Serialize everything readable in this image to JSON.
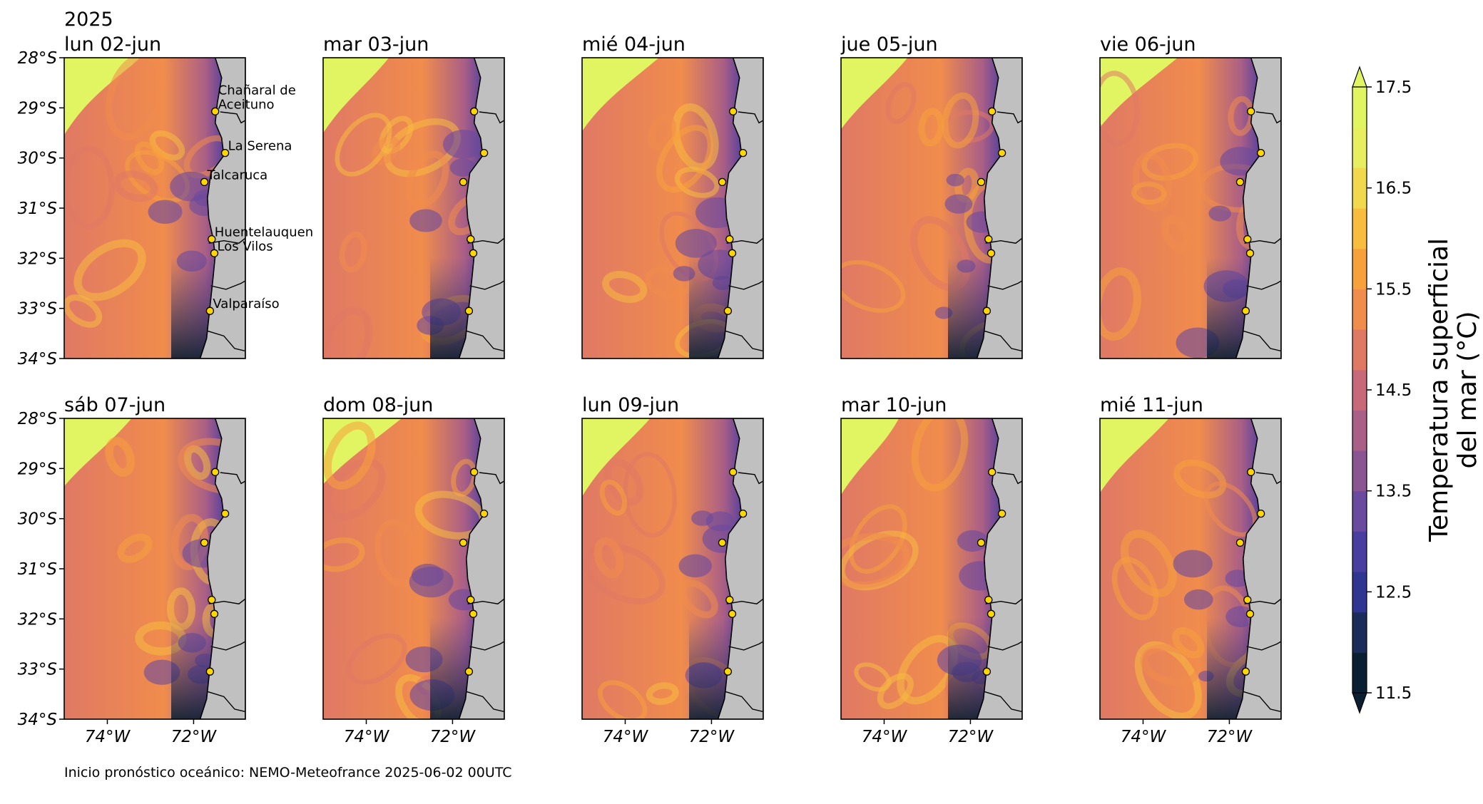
{
  "figure": {
    "year": "2025",
    "footer": "Inicio pronóstico oceánico: NEMO-Meteofrance 2025-06-02 00UTC"
  },
  "panels": [
    {
      "title": "lun 02-jun"
    },
    {
      "title": "mar 03-jun"
    },
    {
      "title": "mié 04-jun"
    },
    {
      "title": "jue 05-jun"
    },
    {
      "title": "vie 06-jun"
    },
    {
      "title": "sáb 07-jun"
    },
    {
      "title": "dom 08-jun"
    },
    {
      "title": "lun 09-jun"
    },
    {
      "title": "mar 10-jun"
    },
    {
      "title": "mié 11-jun"
    }
  ],
  "axes": {
    "lat_ticks": [
      "28°S",
      "29°S",
      "30°S",
      "31°S",
      "32°S",
      "33°S",
      "34°S"
    ],
    "lon_ticks": [
      "74°W",
      "72°W"
    ],
    "lat_range": [
      -34,
      -28
    ],
    "lon_range": [
      -75,
      -70.8
    ]
  },
  "locations": [
    {
      "name": "Chañaral de Aceituno",
      "label_lines": [
        "Chañaral de",
        "Aceituno"
      ],
      "lon": -71.5,
      "lat": -29.07
    },
    {
      "name": "La Serena",
      "label_lines": [
        "La Serena"
      ],
      "lon": -71.27,
      "lat": -29.9
    },
    {
      "name": "Talcaruca",
      "label_lines": [
        "Talcaruca"
      ],
      "lon": -71.75,
      "lat": -30.48
    },
    {
      "name": "Huentelauquen",
      "label_lines": [
        "Huentelauquen"
      ],
      "lon": -71.58,
      "lat": -31.62
    },
    {
      "name": "Los Vilos",
      "label_lines": [
        "Los Vilos"
      ],
      "lon": -71.52,
      "lat": -31.9
    },
    {
      "name": "Valparaíso",
      "label_lines": [
        "Valparaíso"
      ],
      "lon": -71.62,
      "lat": -33.05
    }
  ],
  "colorbar": {
    "title_lines": [
      "Temperatura superficial",
      "del mar (°C)"
    ],
    "ticks": [
      "11.5",
      "12.5",
      "13.5",
      "14.5",
      "15.5",
      "16.5",
      "17.5"
    ],
    "range": [
      11.5,
      17.5
    ],
    "colors": [
      "#0b1f33",
      "#1c2c5a",
      "#2f3590",
      "#4a3da0",
      "#6a4a9e",
      "#8b5593",
      "#aa5f86",
      "#c8697a",
      "#e07964",
      "#f08c4c",
      "#f7a13d",
      "#f8bc3f",
      "#f2d84e",
      "#e7ee5f",
      "#e1f562"
    ],
    "land_color": "#c0c0c0"
  }
}
